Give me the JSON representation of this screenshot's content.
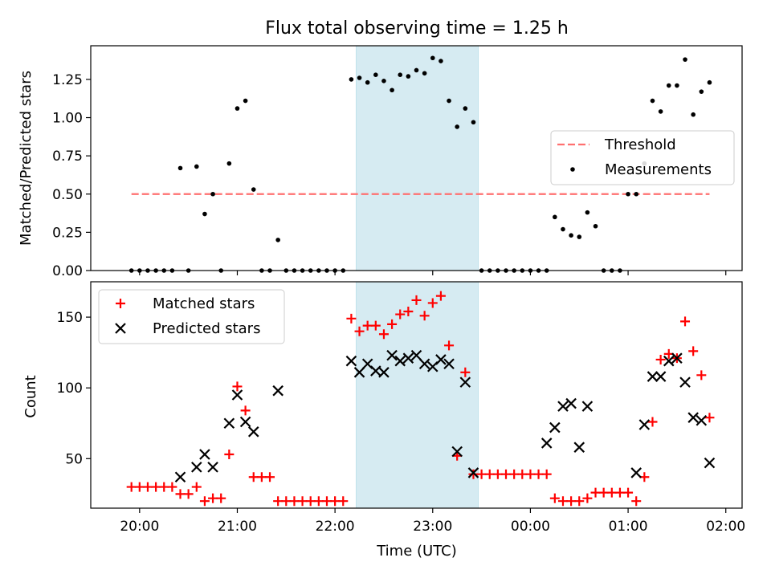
{
  "figure": {
    "title": "Flux total observing time = 1.25 h",
    "xlabel": "Time (UTC)"
  },
  "chart_data": [
    {
      "type": "scatter",
      "ylabel": "Matched/Predicted stars",
      "x_range": [
        "19:30",
        "02:10"
      ],
      "ylim": [
        0,
        1.47
      ],
      "yticks": [
        0.0,
        0.25,
        0.5,
        0.75,
        1.0,
        1.25
      ],
      "ytick_labels": [
        "0.00",
        "0.25",
        "0.50",
        "0.75",
        "1.00",
        "1.25"
      ],
      "shaded_span": {
        "start": "22:13",
        "end": "23:28",
        "color": "#add8e6"
      },
      "legend": {
        "placement": "center-right",
        "entries": [
          "Threshold",
          "Measurements"
        ]
      },
      "series": [
        {
          "name": "Threshold",
          "kind": "dashed-line",
          "color": "#ff7070",
          "x": [
            "19:55",
            "01:50"
          ],
          "y": [
            0.5,
            0.5
          ]
        },
        {
          "name": "Measurements",
          "kind": "dots",
          "color": "#000000",
          "x": [
            "19:55",
            "20:00",
            "20:05",
            "20:10",
            "20:15",
            "20:20",
            "20:25",
            "20:30",
            "20:35",
            "20:40",
            "20:45",
            "20:50",
            "20:55",
            "21:00",
            "21:05",
            "21:10",
            "21:15",
            "21:20",
            "21:25",
            "21:30",
            "21:35",
            "21:40",
            "21:45",
            "21:50",
            "21:55",
            "22:00",
            "22:05",
            "22:10",
            "22:15",
            "22:20",
            "22:25",
            "22:30",
            "22:35",
            "22:40",
            "22:45",
            "22:50",
            "22:55",
            "23:00",
            "23:05",
            "23:10",
            "23:15",
            "23:20",
            "23:25",
            "23:30",
            "23:35",
            "23:40",
            "23:45",
            "23:50",
            "23:55",
            "00:00",
            "00:05",
            "00:10",
            "00:15",
            "00:20",
            "00:25",
            "00:30",
            "00:35",
            "00:40",
            "00:45",
            "00:50",
            "00:55",
            "01:00",
            "01:05",
            "01:10",
            "01:15",
            "01:20",
            "01:25",
            "01:30",
            "01:35",
            "01:40",
            "01:45",
            "01:50"
          ],
          "y": [
            0,
            0,
            0,
            0,
            0,
            0,
            0.67,
            0,
            0.68,
            0.37,
            0.5,
            0,
            0.7,
            1.06,
            1.11,
            0.53,
            0,
            0,
            0.2,
            0,
            0,
            0,
            0,
            0,
            0,
            0,
            0,
            1.25,
            1.26,
            1.23,
            1.28,
            1.24,
            1.18,
            1.28,
            1.27,
            1.31,
            1.29,
            1.39,
            1.37,
            1.11,
            0.94,
            1.06,
            0.97,
            0,
            0,
            0,
            0,
            0,
            0,
            0,
            0,
            0,
            0.35,
            0.27,
            0.23,
            0.22,
            0.38,
            0.29,
            0,
            0,
            0,
            0.5,
            0.5,
            0.7,
            1.11,
            1.04,
            1.21,
            1.21,
            1.38,
            1.02,
            1.17,
            1.23
          ]
        }
      ]
    },
    {
      "type": "scatter",
      "ylabel": "Count",
      "x_range": [
        "19:30",
        "02:10"
      ],
      "ylim": [
        15,
        175
      ],
      "yticks": [
        50,
        100,
        150
      ],
      "ytick_labels": [
        "50",
        "100",
        "150"
      ],
      "xticks": [
        "20:00",
        "21:00",
        "22:00",
        "23:00",
        "00:00",
        "01:00",
        "02:00"
      ],
      "shaded_span": {
        "start": "22:13",
        "end": "23:28",
        "color": "#add8e6"
      },
      "legend": {
        "placement": "top-left",
        "entries": [
          "Matched stars",
          "Predicted stars"
        ]
      },
      "series": [
        {
          "name": "Matched stars",
          "marker": "plus",
          "color": "#ff0000",
          "x": [
            "19:55",
            "20:00",
            "20:05",
            "20:10",
            "20:15",
            "20:20",
            "20:25",
            "20:30",
            "20:35",
            "20:40",
            "20:45",
            "20:50",
            "20:55",
            "21:00",
            "21:05",
            "21:10",
            "21:15",
            "21:20",
            "21:25",
            "21:30",
            "21:35",
            "21:40",
            "21:45",
            "21:50",
            "21:55",
            "22:00",
            "22:05",
            "22:10",
            "22:15",
            "22:20",
            "22:25",
            "22:30",
            "22:35",
            "22:40",
            "22:45",
            "22:50",
            "22:55",
            "23:00",
            "23:05",
            "23:10",
            "23:15",
            "23:20",
            "23:25",
            "23:30",
            "23:35",
            "23:40",
            "23:45",
            "23:50",
            "23:55",
            "00:00",
            "00:05",
            "00:10",
            "00:15",
            "00:20",
            "00:25",
            "00:30",
            "00:35",
            "00:40",
            "00:45",
            "00:50",
            "00:55",
            "01:00",
            "01:05",
            "01:10",
            "01:15",
            "01:20",
            "01:25",
            "01:30",
            "01:35",
            "01:40",
            "01:45",
            "01:50"
          ],
          "y": [
            30,
            30,
            30,
            30,
            30,
            30,
            25,
            25,
            30,
            20,
            22,
            22,
            53,
            101,
            84,
            37,
            37,
            37,
            20,
            20,
            20,
            20,
            20,
            20,
            20,
            20,
            20,
            149,
            140,
            144,
            144,
            138,
            145,
            152,
            154,
            162,
            151,
            160,
            165,
            130,
            52,
            111,
            39,
            39,
            39,
            39,
            39,
            39,
            39,
            39,
            39,
            39,
            22,
            20,
            20,
            20,
            22,
            26,
            26,
            26,
            26,
            26,
            20,
            37,
            76,
            120,
            124,
            121,
            147,
            126,
            109,
            79
          ]
        },
        {
          "name": "Predicted stars",
          "marker": "x",
          "color": "#000000",
          "x": [
            "20:25",
            "20:35",
            "20:40",
            "20:45",
            "20:55",
            "21:00",
            "21:05",
            "21:10",
            "21:25",
            "22:10",
            "22:15",
            "22:20",
            "22:25",
            "22:30",
            "22:35",
            "22:40",
            "22:45",
            "22:50",
            "22:55",
            "23:00",
            "23:05",
            "23:10",
            "23:15",
            "23:20",
            "23:25",
            "00:10",
            "00:15",
            "00:20",
            "00:25",
            "00:30",
            "00:35",
            "01:05",
            "01:10",
            "01:15",
            "01:20",
            "01:25",
            "01:30",
            "01:35",
            "01:40",
            "01:45",
            "01:50"
          ],
          "y": [
            37,
            44,
            53,
            44,
            75,
            95,
            76,
            69,
            98,
            119,
            111,
            117,
            112,
            111,
            123,
            119,
            121,
            123,
            117,
            115,
            120,
            117,
            55,
            104,
            40,
            61,
            72,
            87,
            89,
            58,
            87,
            40,
            74,
            108,
            108,
            119,
            121,
            104,
            79,
            77,
            47
          ]
        }
      ]
    }
  ]
}
